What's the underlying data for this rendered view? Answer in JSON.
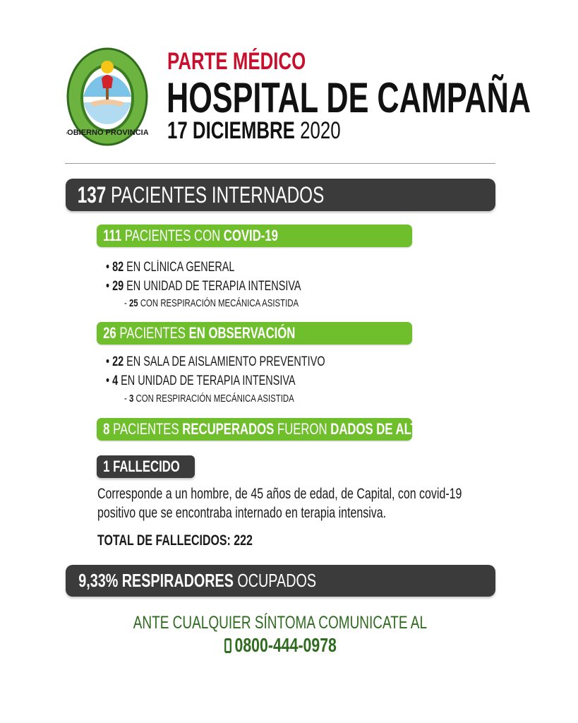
{
  "header": {
    "logo_text": "GOBIERNO PROVINCIAL",
    "kicker": "PARTE MÉDICO",
    "title": "HOSPITAL DE CAMPAÑA",
    "date_bold": "17 DICIEMBRE",
    "date_year": "2020"
  },
  "internados": {
    "count": "137",
    "label": "PACIENTES INTERNADOS"
  },
  "covid": {
    "count": "111",
    "label": "PACIENTES CON",
    "label_bold": "COVID-19",
    "items": [
      {
        "count": "82",
        "text": "EN CLÍNICA GENERAL"
      },
      {
        "count": "29",
        "text": "EN UNIDAD DE TERAPIA INTENSIVA"
      }
    ],
    "sub": {
      "count": "25",
      "text": "CON RESPIRACIÓN MECÁNICA ASISTIDA"
    }
  },
  "observacion": {
    "count": "26",
    "label": "PACIENTES",
    "label_bold": "EN OBSERVACIÓN",
    "items": [
      {
        "count": "22",
        "text": "EN SALA DE AISLAMIENTO PREVENTIVO"
      },
      {
        "count": "4",
        "text": "EN UNIDAD DE TERAPIA INTENSIVA"
      }
    ],
    "sub": {
      "count": "3",
      "text": "CON RESPIRACIÓN MECÁNICA ASISTIDA"
    }
  },
  "altas": {
    "count": "8",
    "p1": "PACIENTES",
    "p2": "RECUPERADOS",
    "p3": "FUERON",
    "p4": "DADOS DE ALTA"
  },
  "fallecido": {
    "label": "1 FALLECIDO",
    "line1": "Corresponde a un hombre, de 45 años de edad, de Capital, con covid-19",
    "line2": "positivo que se encontraba internado en terapia intensiva.",
    "total": "TOTAL DE FALLECIDOS: 222"
  },
  "respiradores": {
    "pct": "9,33%",
    "bold": "RESPIRADORES",
    "label": "OCUPADOS"
  },
  "footer": {
    "line": "ANTE CUALQUIER SÍNTOMA COMUNICATE AL",
    "phone": "0800-444-0978",
    "phone_icon": "mobile-phone-icon"
  },
  "colors": {
    "green": "#6fbe2c",
    "dark": "#3b3b3c",
    "red": "#c8102e",
    "footer_green": "#2e6b1f"
  }
}
